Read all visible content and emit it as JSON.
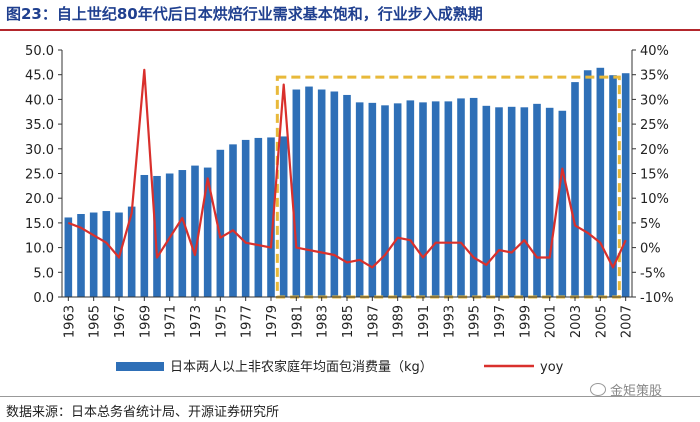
{
  "figure": {
    "title": "图23：自上世纪80年代后日本烘焙行业需求基本饱和，行业步入成熟期",
    "source": "数据来源：日本总务省统计局、开源证券研究所",
    "watermark": "金矩策股",
    "watermark_icon": "wechat-icon"
  },
  "chart_data": {
    "type": "bar+line",
    "x": [
      1963,
      1964,
      1965,
      1966,
      1967,
      1968,
      1969,
      1970,
      1971,
      1972,
      1973,
      1974,
      1975,
      1976,
      1977,
      1978,
      1979,
      1980,
      1981,
      1982,
      1983,
      1984,
      1985,
      1986,
      1987,
      1988,
      1989,
      1990,
      1991,
      1992,
      1993,
      1994,
      1995,
      1996,
      1997,
      1998,
      1999,
      2000,
      2001,
      2002,
      2003,
      2004,
      2005,
      2006,
      2007
    ],
    "x_tick_labels": [
      "1963",
      "1965",
      "1967",
      "1969",
      "1971",
      "1973",
      "1975",
      "1977",
      "1979",
      "1981",
      "1983",
      "1985",
      "1987",
      "1989",
      "1991",
      "1993",
      "1995",
      "1997",
      "1999",
      "2001",
      "2003",
      "2005",
      "2007"
    ],
    "series": [
      {
        "name": "日本两人以上非农家庭年均面包消费量（kg）",
        "type": "bar",
        "axis": "left",
        "color": "#2e6fb7",
        "values": [
          16.1,
          16.8,
          17.1,
          17.4,
          17.1,
          18.3,
          24.7,
          24.5,
          25.0,
          25.7,
          26.6,
          26.2,
          29.8,
          30.9,
          31.8,
          32.2,
          32.3,
          32.5,
          42.0,
          42.6,
          42.0,
          41.6,
          40.9,
          39.4,
          39.3,
          38.8,
          39.2,
          39.8,
          39.4,
          39.6,
          39.6,
          40.2,
          40.3,
          38.7,
          38.4,
          38.5,
          38.4,
          39.1,
          38.3,
          37.7,
          43.5,
          45.9,
          46.4,
          44.9,
          45.3
        ]
      },
      {
        "name": "yoy",
        "type": "line",
        "axis": "right",
        "color": "#d9302c",
        "values": [
          0.05,
          0.04,
          0.025,
          0.01,
          -0.02,
          0.07,
          0.36,
          -0.02,
          0.02,
          0.06,
          -0.015,
          0.14,
          0.02,
          0.035,
          0.01,
          0.005,
          0.0,
          0.33,
          0.0,
          -0.005,
          -0.01,
          -0.015,
          -0.03,
          -0.025,
          -0.04,
          -0.015,
          0.02,
          0.015,
          -0.02,
          0.01,
          0.01,
          0.01,
          -0.02,
          -0.035,
          -0.005,
          -0.01,
          0.015,
          -0.02,
          -0.02,
          0.16,
          0.045,
          0.03,
          0.01,
          -0.04,
          0.015
        ]
      }
    ],
    "y_left": {
      "range": [
        0,
        50
      ],
      "ticks": [
        "0.0",
        "5.0",
        "10.0",
        "15.0",
        "20.0",
        "25.0",
        "30.0",
        "35.0",
        "40.0",
        "45.0",
        "50.0"
      ]
    },
    "y_right": {
      "range": [
        -0.1,
        0.4
      ],
      "ticks": [
        "-10%",
        "-5%",
        "0%",
        "5%",
        "10%",
        "15%",
        "20%",
        "25%",
        "30%",
        "35%",
        "40%"
      ]
    },
    "highlight": {
      "from": 1980,
      "to": 2006,
      "y_from": 0.0,
      "y_to": 44.5,
      "color": "#e8b93a",
      "style": "dashed"
    },
    "legend": [
      "日本两人以上非农家庭年均面包消费量（kg）",
      "yoy"
    ]
  }
}
